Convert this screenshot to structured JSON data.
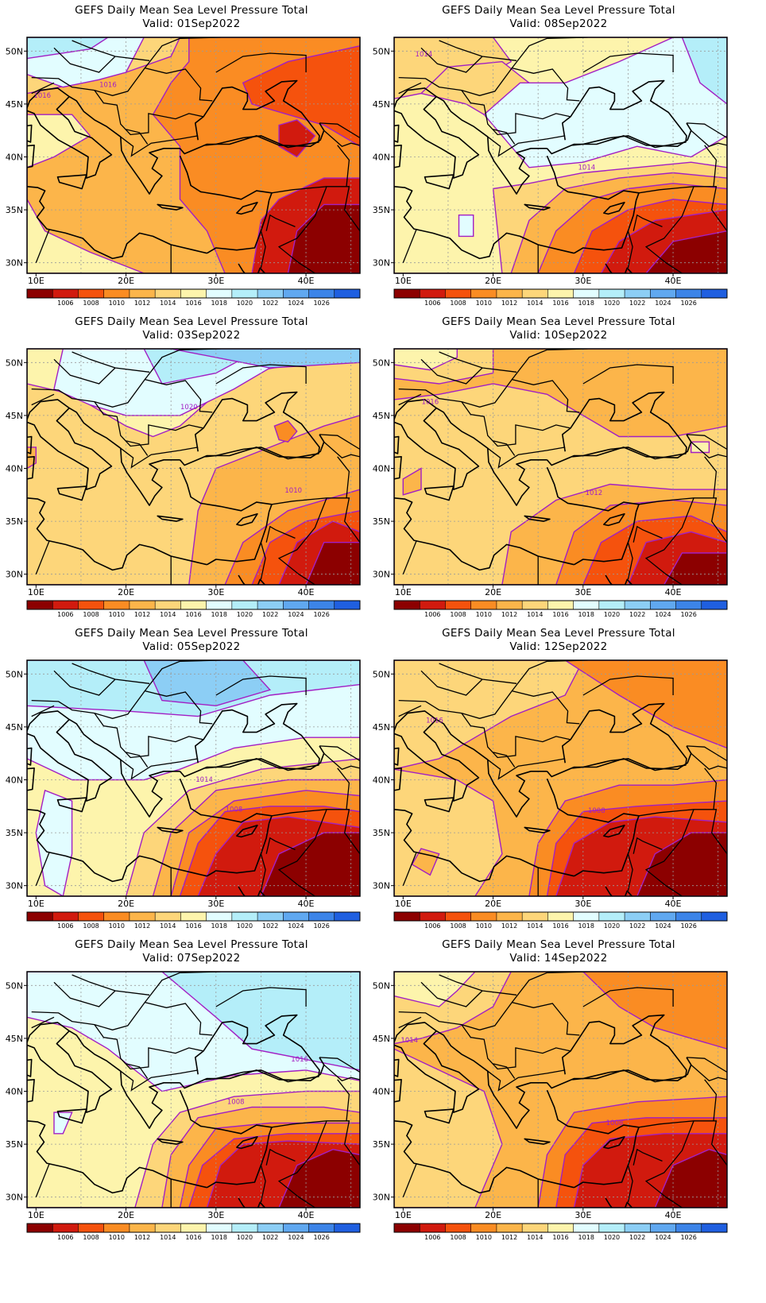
{
  "title": "GEFS Daily Mean Sea Level Pressure Total",
  "valid_prefix": "Valid:",
  "x_ticks": [
    "10E",
    "20E",
    "30E",
    "40E"
  ],
  "y_ticks": [
    "50N",
    "45N",
    "40N",
    "35N",
    "30N"
  ],
  "colorbar": {
    "labels": [
      "1006",
      "1008",
      "1010",
      "1012",
      "1014",
      "1016",
      "1018",
      "1020",
      "1022",
      "1024",
      "1026"
    ],
    "colors": [
      "#8c0000",
      "#d11a0e",
      "#f5520d",
      "#fa8c23",
      "#fcb54a",
      "#fdd67a",
      "#fdf4ac",
      "#e2fdff",
      "#b4eef9",
      "#8ccef5",
      "#60a8f0",
      "#3c84e8",
      "#1f5fe0"
    ]
  },
  "contour_color": "#a21fc4",
  "panels": [
    {
      "valid": "01Sep2022",
      "labels": [
        "1016",
        "1016"
      ]
    },
    {
      "valid": "08Sep2022",
      "labels": [
        "1014",
        "1014"
      ]
    },
    {
      "valid": "03Sep2022",
      "labels": [
        "1020",
        "1010"
      ]
    },
    {
      "valid": "10Sep2022",
      "labels": [
        "1016",
        "1012"
      ]
    },
    {
      "valid": "05Sep2022",
      "labels": [
        "1014",
        "1008"
      ]
    },
    {
      "valid": "12Sep2022",
      "labels": [
        "1016",
        "1008"
      ]
    },
    {
      "valid": "07Sep2022",
      "labels": [
        "1016",
        "1008"
      ]
    },
    {
      "valid": "14Sep2022",
      "labels": [
        "1014",
        "1008"
      ]
    }
  ]
}
